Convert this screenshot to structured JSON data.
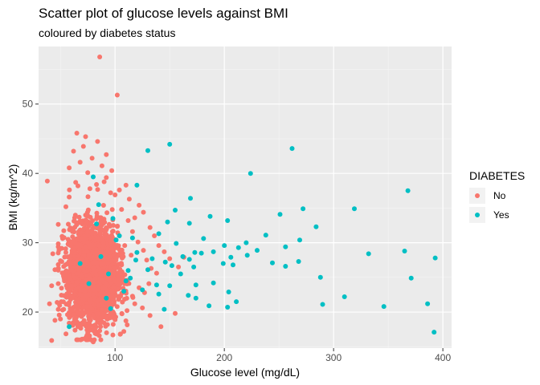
{
  "chart_data": {
    "type": "scatter",
    "title": "Scatter plot of glucose levels against BMI",
    "subtitle": "coloured by diabetes status",
    "xlabel": "Glucose level (mg/dL)",
    "ylabel": "BMI (kg/m^2)",
    "xlim": [
      30,
      408
    ],
    "ylim": [
      14.8,
      58.3
    ],
    "x_ticks": [
      100,
      200,
      300,
      400
    ],
    "y_ticks": [
      20,
      30,
      40,
      50
    ],
    "grid": true,
    "legend": {
      "title": "DIABETES",
      "position": "right",
      "entries": [
        {
          "label": "No",
          "color": "#F8766D"
        },
        {
          "label": "Yes",
          "color": "#00BFC4"
        }
      ]
    },
    "series": [
      {
        "name": "No",
        "color": "#F8766D",
        "points": [
          [
            86,
            56.8
          ],
          [
            102,
            51.3
          ],
          [
            65,
            45.8
          ],
          [
            73,
            45.3
          ],
          [
            84,
            44.6
          ],
          [
            71,
            43.9
          ],
          [
            62,
            43.2
          ],
          [
            92,
            42.7
          ],
          [
            79,
            42.2
          ],
          [
            68,
            41.6
          ],
          [
            88,
            41.1
          ],
          [
            58,
            40.8
          ],
          [
            97,
            40.4
          ],
          [
            75,
            40.1
          ],
          [
            38,
            38.9
          ],
          [
            110,
            38.3
          ],
          [
            104,
            37.6
          ],
          [
            113,
            36.3
          ],
          [
            122,
            35.4
          ],
          [
            126,
            34.4
          ],
          [
            118,
            33.6
          ],
          [
            132,
            32.2
          ],
          [
            136,
            31.0
          ],
          [
            140,
            29.6
          ],
          [
            145,
            28.7
          ],
          [
            150,
            27.7
          ],
          [
            158,
            26.5
          ],
          [
            163,
            27.9
          ],
          [
            155,
            19.8
          ],
          [
            142,
            17.9
          ],
          [
            132,
            19.5
          ],
          [
            125,
            20.6
          ],
          [
            118,
            21.2
          ],
          [
            108,
            17.2
          ],
          [
            98,
            16.7
          ],
          [
            80,
            15.7
          ],
          [
            70,
            16.1
          ],
          [
            42,
            15.9
          ],
          [
            45,
            18.8
          ],
          [
            50,
            19.0
          ],
          [
            40,
            21.2
          ],
          [
            47,
            21.4
          ],
          [
            42,
            23.8
          ],
          [
            48,
            24.1
          ],
          [
            45,
            26.1
          ],
          [
            50,
            27.4
          ],
          [
            43,
            28.4
          ],
          [
            55,
            28.6
          ],
          [
            60,
            32.0
          ],
          [
            52,
            30.6
          ],
          [
            63,
            33.6
          ],
          [
            55,
            35.2
          ],
          [
            58,
            36.6
          ],
          [
            66,
            38.2
          ],
          [
            64,
            38.7
          ],
          [
            92,
            39.4
          ],
          [
            100,
            36.9
          ],
          [
            106,
            34.8
          ],
          [
            112,
            33.2
          ],
          [
            116,
            31.6
          ],
          [
            121,
            30.1
          ],
          [
            126,
            28.9
          ],
          [
            129,
            27.5
          ],
          [
            133,
            26.3
          ],
          [
            138,
            25.6
          ],
          [
            131,
            24.1
          ],
          [
            127,
            22.8
          ],
          [
            122,
            23.5
          ],
          [
            116,
            22.3
          ],
          [
            111,
            20.2
          ],
          [
            100,
            18.9
          ],
          [
            93,
            18.2
          ],
          [
            86,
            17.3
          ],
          [
            75,
            17.0
          ],
          [
            66,
            17.9
          ],
          [
            58,
            18.4
          ],
          [
            53,
            20.4
          ],
          [
            56,
            22.6
          ],
          [
            53,
            25.1
          ],
          [
            57,
            29.8
          ],
          [
            61,
            31.6
          ],
          [
            96,
            37.2
          ],
          [
            90,
            38.8
          ],
          [
            83,
            38.4
          ],
          [
            77,
            37.8
          ]
        ]
      },
      {
        "name": "Yes",
        "color": "#00BFC4",
        "points": [
          [
            150,
            44.2
          ],
          [
            262,
            43.6
          ],
          [
            130,
            43.3
          ],
          [
            224,
            40.0
          ],
          [
            80,
            39.5
          ],
          [
            120,
            38.3
          ],
          [
            368,
            37.5
          ],
          [
            169,
            36.4
          ],
          [
            272,
            34.9
          ],
          [
            319,
            34.9
          ],
          [
            155,
            34.7
          ],
          [
            251,
            34.1
          ],
          [
            187,
            33.8
          ],
          [
            203,
            33.2
          ],
          [
            148,
            33.0
          ],
          [
            168,
            32.8
          ],
          [
            284,
            32.3
          ],
          [
            140,
            31.3
          ],
          [
            238,
            31.1
          ],
          [
            116,
            30.7
          ],
          [
            181,
            30.6
          ],
          [
            269,
            30.4
          ],
          [
            220,
            30.0
          ],
          [
            156,
            29.9
          ],
          [
            200,
            29.6
          ],
          [
            256,
            29.4
          ],
          [
            213,
            29.3
          ],
          [
            230,
            28.9
          ],
          [
            365,
            28.8
          ],
          [
            190,
            28.7
          ],
          [
            179,
            28.5
          ],
          [
            173,
            28.6
          ],
          [
            332,
            28.4
          ],
          [
            221,
            28.2
          ],
          [
            162,
            28.0
          ],
          [
            206,
            27.9
          ],
          [
            393,
            27.8
          ],
          [
            134,
            27.7
          ],
          [
            168,
            27.6
          ],
          [
            146,
            27.2
          ],
          [
            244,
            27.1
          ],
          [
            268,
            27.3
          ],
          [
            119,
            27.5
          ],
          [
            199,
            27.0
          ],
          [
            208,
            26.8
          ],
          [
            256,
            26.6
          ],
          [
            172,
            26.5
          ],
          [
            152,
            26.7
          ],
          [
            130,
            26.1
          ],
          [
            160,
            25.5
          ],
          [
            288,
            25.0
          ],
          [
            371,
            24.9
          ],
          [
            110,
            24.5
          ],
          [
            138,
            23.9
          ],
          [
            190,
            24.2
          ],
          [
            150,
            23.8
          ],
          [
            174,
            23.9
          ],
          [
            125,
            23.2
          ],
          [
            204,
            22.9
          ],
          [
            140,
            22.6
          ],
          [
            167,
            22.4
          ],
          [
            310,
            22.2
          ],
          [
            174,
            22.0
          ],
          [
            211,
            21.5
          ],
          [
            386,
            21.2
          ],
          [
            290,
            21.1
          ],
          [
            186,
            20.9
          ],
          [
            346,
            20.8
          ],
          [
            203,
            20.7
          ],
          [
            145,
            20.4
          ],
          [
            96,
            20.5
          ],
          [
            58,
            17.9
          ],
          [
            392,
            17.1
          ],
          [
            108,
            23.0
          ],
          [
            94,
            25.5
          ],
          [
            87,
            28.0
          ],
          [
            101,
            30.4
          ],
          [
            83,
            32.7
          ],
          [
            112,
            26.0
          ],
          [
            76,
            24.1
          ],
          [
            92,
            22.0
          ],
          [
            120,
            28.6
          ],
          [
            98,
            33.5
          ],
          [
            85,
            35.5
          ],
          [
            104,
            31.0
          ],
          [
            68,
            27.0
          ],
          [
            114,
            24.9
          ]
        ]
      }
    ]
  }
}
